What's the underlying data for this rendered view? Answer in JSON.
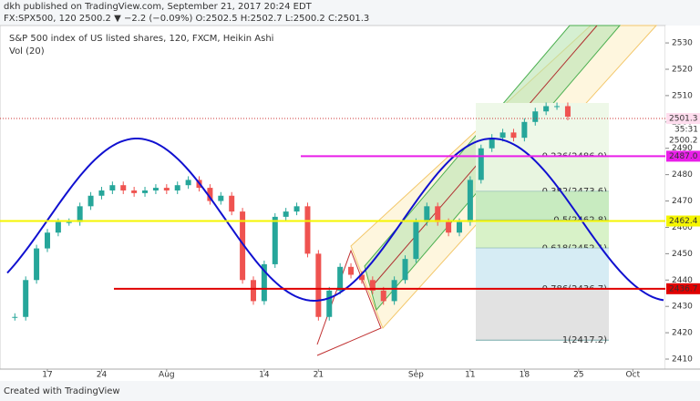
{
  "header": {
    "publisher": "dkh published on TradingView.com, September 21, 2017 20:24 EDT",
    "quote": "FX:SPX500, 120  2500.2 ▼ −2.2 (−0.09%) O:2502.5 H:2502.7 L:2500.2 C:2501.3"
  },
  "chart_data": {
    "type": "candlestick",
    "title": "S&P 500 index of US listed shares, 120, FXCM, Heikin Ashi",
    "subtitle": "Vol (20)",
    "x": [
      -3,
      -2,
      -1,
      0,
      1,
      2,
      3,
      4,
      5,
      6,
      7,
      8,
      9,
      10,
      11,
      12,
      13,
      14,
      15,
      16,
      17,
      18,
      19,
      20,
      21,
      22,
      23,
      24,
      25,
      26,
      27,
      28,
      29,
      30,
      31,
      32,
      33,
      34,
      35,
      36,
      37,
      38,
      39,
      40,
      41,
      42,
      43,
      44,
      45,
      46,
      47,
      48
    ],
    "series": [
      {
        "name": "SPX500",
        "up_color": "#26a69a",
        "down_color": "#ef5350",
        "values": [
          2426,
          2440,
          2452,
          2458,
          2462,
          2462,
          2468,
          2472,
          2474,
          2476,
          2474,
          2473,
          2474,
          2475,
          2474,
          2476,
          2478,
          2475,
          2470,
          2472,
          2466,
          2440,
          2432,
          2446,
          2464,
          2466,
          2468,
          2450,
          2426,
          2436,
          2445,
          2442,
          2440,
          2436,
          2432,
          2440,
          2448,
          2462,
          2468,
          2462,
          2458,
          2462,
          2478,
          2490,
          2494,
          2496,
          2494,
          2500,
          2504,
          2506,
          2506,
          2502
        ]
      }
    ],
    "xlim": [
      -4.37,
      57
    ],
    "xticks": [
      {
        "value": 0,
        "label": "17"
      },
      {
        "value": 5,
        "label": "24"
      },
      {
        "value": 11,
        "label": "Aug"
      },
      {
        "value": 20,
        "label": "14"
      },
      {
        "value": 25,
        "label": "21"
      },
      {
        "value": 34,
        "label": "Sep"
      },
      {
        "value": 39,
        "label": "11"
      },
      {
        "value": 44,
        "label": "18"
      },
      {
        "value": 49,
        "label": "25"
      },
      {
        "value": 54,
        "label": "Oct"
      }
    ],
    "ylim": [
      2406.2,
      2536.6
    ],
    "yticks": [
      2410,
      2420,
      2430,
      2440,
      2450,
      2460,
      2470,
      2480,
      2490,
      2500,
      2510,
      2520,
      2530
    ],
    "hlines": [
      {
        "value": 2487.0,
        "label": "2487.0",
        "color": "#e91ee9"
      },
      {
        "value": 2462.4,
        "label": "2462.4",
        "color": "#f5f500"
      },
      {
        "value": 2436.7,
        "label": "2436.7",
        "color": "#e00000"
      }
    ],
    "fib_levels": [
      {
        "value": 2486.9,
        "label": "0.236(2486.9)",
        "color": "#e8f5e0"
      },
      {
        "value": 2473.6,
        "label": "0.382(2473.6)",
        "color": "#c8ebc0"
      },
      {
        "value": 2462.8,
        "label": "0.5(2462.8)",
        "color": "#d8f2c8"
      },
      {
        "value": 2452.1,
        "label": "0.618(2452.1)",
        "color": "#d6ecf4"
      },
      {
        "value": 2436.7,
        "label": "0.786(2436.7)",
        "color": "#e2e2e2"
      },
      {
        "value": 2417.2,
        "label": "1(2417.2)",
        "color": "#ffffff"
      }
    ],
    "last_price": 2501.3,
    "countdown": "35:31",
    "bid": 2500.2
  },
  "footer": "Created with TradingView"
}
